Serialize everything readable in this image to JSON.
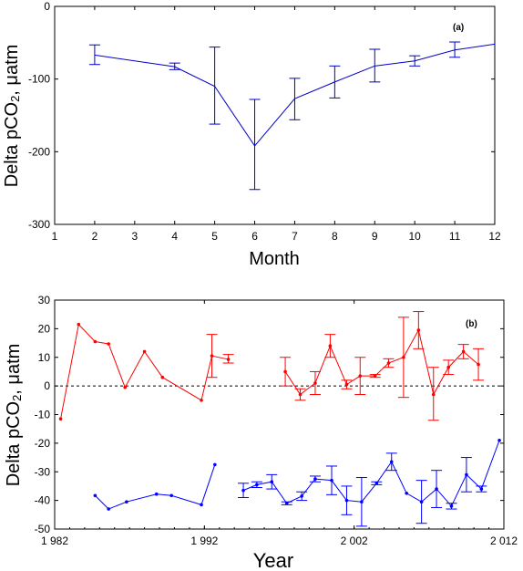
{
  "chart_data": [
    {
      "type": "line",
      "panel_label": "(a)",
      "xlabel": "Month",
      "ylabel_main": "Delta pCO",
      "ylabel_sub": "2",
      "ylabel_tail": ", μatm",
      "xlim": [
        1,
        12
      ],
      "ylim": [
        -300,
        0
      ],
      "xticks": [
        1,
        2,
        3,
        4,
        5,
        6,
        7,
        8,
        9,
        10,
        11,
        12
      ],
      "yticks": [
        0,
        -100,
        -200,
        -300
      ],
      "series": [
        {
          "color": "#0000cc",
          "points": [
            {
              "x": 2,
              "y": -67,
              "lo": -80,
              "hi": -53
            },
            {
              "x": 4,
              "y": -83,
              "lo": -87,
              "hi": -78
            },
            {
              "x": 5,
              "y": -110,
              "lo": -162,
              "hi": -56
            },
            {
              "x": 6,
              "y": -192,
              "lo": -252,
              "hi": -128
            },
            {
              "x": 7,
              "y": -127,
              "lo": -156,
              "hi": -99
            },
            {
              "x": 8,
              "y": -104,
              "lo": -126,
              "hi": -82
            },
            {
              "x": 9,
              "y": -82,
              "lo": -104,
              "hi": -59
            },
            {
              "x": 10,
              "y": -75,
              "lo": -82,
              "hi": -68
            },
            {
              "x": 11,
              "y": -60,
              "lo": -70,
              "hi": -49
            },
            {
              "x": 12,
              "y": -52,
              "lo": -52,
              "hi": -52
            }
          ]
        }
      ]
    },
    {
      "type": "line",
      "panel_label": "(b)",
      "xlabel": "Year",
      "ylabel_main": "Delta pCO",
      "ylabel_sub": "2",
      "ylabel_tail": ", μatm",
      "xlim": [
        1982,
        2012
      ],
      "ylim": [
        -50,
        30
      ],
      "xticks": [
        1982,
        1992,
        2002,
        2012
      ],
      "xtick_labels": [
        "1 982",
        "1 992",
        "2 002",
        "2 012"
      ],
      "yticks": [
        30,
        20,
        10,
        0,
        -10,
        -20,
        -30,
        -40,
        -50
      ],
      "reference_line": {
        "y": 0,
        "style": "dashed"
      },
      "series": [
        {
          "color": "#ff0000",
          "segments": [
            [
              {
                "x": 1982.4,
                "y": -11.5
              },
              {
                "x": 1983.6,
                "y": 21.5
              },
              {
                "x": 1984.7,
                "y": 15.5
              },
              {
                "x": 1985.6,
                "y": 14.7
              },
              {
                "x": 1986.7,
                "y": -0.5
              },
              {
                "x": 1988.0,
                "y": 12
              },
              {
                "x": 1989.2,
                "y": 3
              },
              {
                "x": 1991.8,
                "y": -5
              },
              {
                "x": 1992.5,
                "y": 10.5,
                "lo": 3,
                "hi": 18
              },
              {
                "x": 1993.6,
                "y": 9.3,
                "lo": 8,
                "hi": 11
              }
            ],
            [
              {
                "x": 1997.4,
                "y": 5,
                "lo": 0,
                "hi": 10
              },
              {
                "x": 1998.4,
                "y": -3,
                "lo": -5,
                "hi": -1
              },
              {
                "x": 1999.4,
                "y": 1,
                "lo": -3,
                "hi": 5
              },
              {
                "x": 2000.4,
                "y": 14,
                "lo": 10,
                "hi": 18
              },
              {
                "x": 2001.5,
                "y": 0.5,
                "lo": -1,
                "hi": 2
              },
              {
                "x": 2002.4,
                "y": 3.5,
                "lo": -3,
                "hi": 10
              },
              {
                "x": 2003.4,
                "y": 3.5,
                "lo": 3,
                "hi": 4
              },
              {
                "x": 2004.3,
                "y": 8,
                "lo": 6.5,
                "hi": 9.5
              },
              {
                "x": 2005.3,
                "y": 10,
                "lo": -4,
                "hi": 24
              },
              {
                "x": 2006.3,
                "y": 19.5,
                "lo": 13,
                "hi": 26
              },
              {
                "x": 2007.3,
                "y": -3,
                "lo": -12,
                "hi": 6.5
              },
              {
                "x": 2008.3,
                "y": 6.5,
                "lo": 4,
                "hi": 9
              },
              {
                "x": 2009.3,
                "y": 12,
                "lo": 9.5,
                "hi": 14.5
              },
              {
                "x": 2010.3,
                "y": 7.5,
                "lo": 2,
                "hi": 13
              }
            ]
          ]
        },
        {
          "color": "#0000ff",
          "segments": [
            [
              {
                "x": 1984.7,
                "y": -38.3
              },
              {
                "x": 1985.6,
                "y": -43
              },
              {
                "x": 1986.8,
                "y": -40.5
              },
              {
                "x": 1988.8,
                "y": -37.8
              },
              {
                "x": 1989.8,
                "y": -38.3
              },
              {
                "x": 1991.8,
                "y": -41.5
              },
              {
                "x": 1992.7,
                "y": -27.5
              }
            ],
            [
              {
                "x": 1994.6,
                "y": -36.5,
                "lo": -39,
                "hi": -34
              },
              {
                "x": 1995.5,
                "y": -34.5,
                "lo": -35.5,
                "hi": -33.5
              },
              {
                "x": 1996.5,
                "y": -33.5,
                "lo": -36,
                "hi": -31
              },
              {
                "x": 1997.5,
                "y": -41,
                "lo": -41.5,
                "hi": -40.5
              },
              {
                "x": 1998.5,
                "y": -38.5,
                "lo": -40,
                "hi": -37
              },
              {
                "x": 1999.4,
                "y": -32.5,
                "lo": -33.5,
                "hi": -31.5
              },
              {
                "x": 2000.5,
                "y": -33,
                "lo": -38,
                "hi": -28
              },
              {
                "x": 2001.5,
                "y": -40,
                "lo": -45,
                "hi": -35
              },
              {
                "x": 2002.5,
                "y": -40.5,
                "lo": -49,
                "hi": -32
              },
              {
                "x": 2003.5,
                "y": -34,
                "lo": -34.5,
                "hi": -33.5
              },
              {
                "x": 2004.5,
                "y": -26.5,
                "lo": -29.5,
                "hi": -23.5
              },
              {
                "x": 2005.5,
                "y": -37.5,
                "lo": -37.5,
                "hi": -37.5
              },
              {
                "x": 2006.5,
                "y": -40.5,
                "lo": -48,
                "hi": -33
              },
              {
                "x": 2007.5,
                "y": -36,
                "lo": -42.5,
                "hi": -29.5
              },
              {
                "x": 2008.5,
                "y": -42,
                "lo": -43,
                "hi": -41
              },
              {
                "x": 2009.5,
                "y": -31,
                "lo": -37,
                "hi": -25
              },
              {
                "x": 2010.5,
                "y": -36,
                "lo": -37,
                "hi": -35
              },
              {
                "x": 2011.7,
                "y": -19,
                "lo": -19,
                "hi": -19
              }
            ]
          ]
        }
      ]
    }
  ]
}
